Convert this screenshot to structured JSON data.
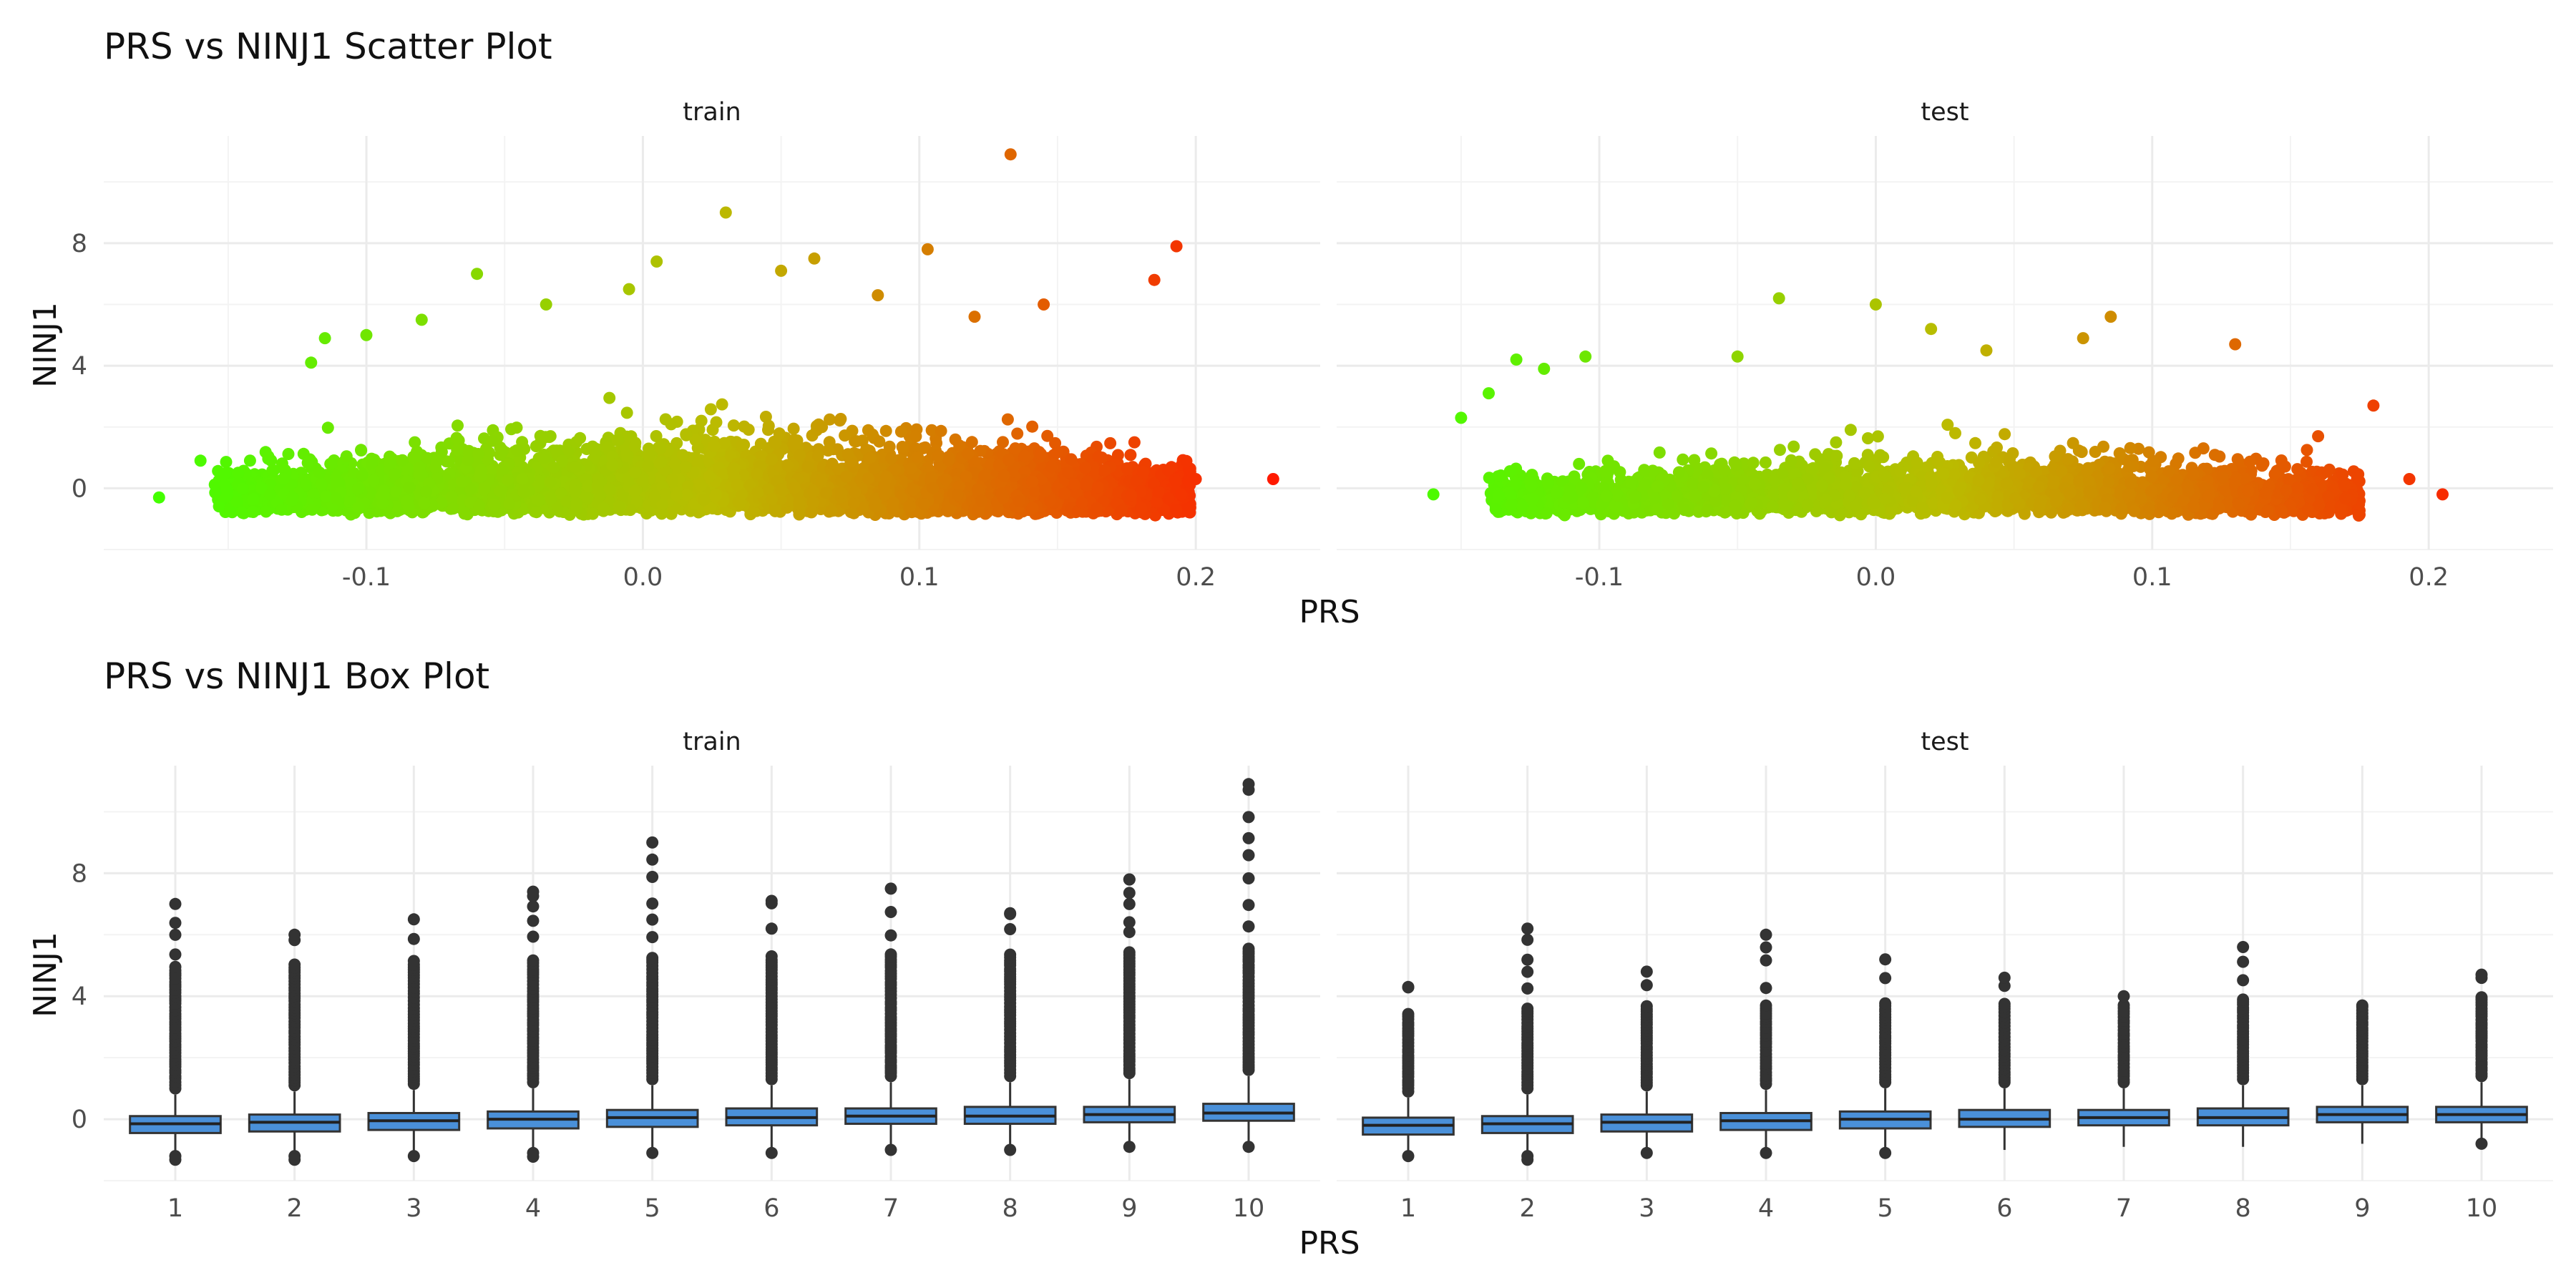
{
  "chart_data": [
    {
      "type": "scatter",
      "title": "PRS vs NINJ1 Scatter Plot",
      "xlabel": "PRS",
      "ylabel": "NINJ1",
      "xlim": [
        -0.195,
        0.245
      ],
      "ylim": [
        -2.0,
        11.5
      ],
      "x_ticks": [
        -0.1,
        0.0,
        0.1,
        0.2
      ],
      "x_tick_labels": [
        "-0.1",
        "0.0",
        "0.1",
        "0.2"
      ],
      "y_ticks": [
        0,
        4,
        8
      ],
      "y_tick_labels": [
        "0",
        "4",
        "8"
      ],
      "grid": true,
      "color_scale": {
        "low": "#44ff00",
        "mid": "#bbbb00",
        "high": "#ff1a00"
      },
      "facets": [
        {
          "label": "train",
          "x_range": [
            -0.175,
            0.228
          ],
          "bulk_y_range": [
            -1.2,
            3.5
          ],
          "highlighted_points": [
            {
              "x": -0.175,
              "y": -0.3
            },
            {
              "x": -0.16,
              "y": 0.9
            },
            {
              "x": -0.12,
              "y": 4.1
            },
            {
              "x": -0.115,
              "y": 4.9
            },
            {
              "x": -0.1,
              "y": 5.0
            },
            {
              "x": -0.08,
              "y": 5.5
            },
            {
              "x": -0.06,
              "y": 7.0
            },
            {
              "x": -0.035,
              "y": 6.0
            },
            {
              "x": -0.005,
              "y": 6.5
            },
            {
              "x": 0.005,
              "y": 7.4
            },
            {
              "x": 0.03,
              "y": 9.0
            },
            {
              "x": 0.05,
              "y": 7.1
            },
            {
              "x": 0.062,
              "y": 7.5
            },
            {
              "x": 0.085,
              "y": 6.3
            },
            {
              "x": 0.103,
              "y": 7.8
            },
            {
              "x": 0.133,
              "y": 10.9
            },
            {
              "x": 0.12,
              "y": 5.6
            },
            {
              "x": 0.145,
              "y": 6.0
            },
            {
              "x": 0.185,
              "y": 6.8
            },
            {
              "x": 0.193,
              "y": 7.9
            },
            {
              "x": 0.19,
              "y": 0.6
            },
            {
              "x": 0.2,
              "y": 0.3
            },
            {
              "x": 0.228,
              "y": 0.3
            }
          ]
        },
        {
          "label": "test",
          "x_range": [
            -0.16,
            0.205
          ],
          "bulk_y_range": [
            -1.2,
            2.5
          ],
          "highlighted_points": [
            {
              "x": -0.16,
              "y": -0.2
            },
            {
              "x": -0.15,
              "y": 2.3
            },
            {
              "x": -0.14,
              "y": 3.1
            },
            {
              "x": -0.13,
              "y": 4.2
            },
            {
              "x": -0.12,
              "y": 3.9
            },
            {
              "x": -0.105,
              "y": 4.3
            },
            {
              "x": -0.05,
              "y": 4.3
            },
            {
              "x": -0.035,
              "y": 6.2
            },
            {
              "x": 0.0,
              "y": 6.0
            },
            {
              "x": 0.02,
              "y": 5.2
            },
            {
              "x": 0.04,
              "y": 4.5
            },
            {
              "x": 0.075,
              "y": 4.9
            },
            {
              "x": 0.085,
              "y": 5.6
            },
            {
              "x": 0.13,
              "y": 4.7
            },
            {
              "x": 0.16,
              "y": 1.7
            },
            {
              "x": 0.18,
              "y": 2.7
            },
            {
              "x": 0.193,
              "y": 0.3
            },
            {
              "x": 0.205,
              "y": -0.2
            }
          ]
        }
      ]
    },
    {
      "type": "box",
      "title": "PRS vs NINJ1 Box Plot",
      "xlabel": "PRS",
      "ylabel": "NINJ1",
      "categories": [
        "1",
        "2",
        "3",
        "4",
        "5",
        "6",
        "7",
        "8",
        "9",
        "10"
      ],
      "ylim": [
        -2.0,
        11.5
      ],
      "y_ticks": [
        0,
        4,
        8
      ],
      "y_tick_labels": [
        "0",
        "4",
        "8"
      ],
      "grid": true,
      "box_fill": "#4a90d9",
      "facets": [
        {
          "label": "train",
          "boxes": [
            {
              "category": "1",
              "q1": -0.45,
              "median": -0.15,
              "q3": 0.1,
              "whisker_low": -1.1,
              "whisker_high": 0.8,
              "outlier_max": 7.0,
              "outlier_min": -1.4
            },
            {
              "category": "2",
              "q1": -0.4,
              "median": -0.1,
              "q3": 0.15,
              "whisker_low": -1.1,
              "whisker_high": 0.9,
              "outlier_max": 6.0,
              "outlier_min": -1.4
            },
            {
              "category": "3",
              "q1": -0.35,
              "median": -0.05,
              "q3": 0.2,
              "whisker_low": -1.1,
              "whisker_high": 0.95,
              "outlier_max": 6.5,
              "outlier_min": -1.3
            },
            {
              "category": "4",
              "q1": -0.3,
              "median": 0.0,
              "q3": 0.25,
              "whisker_low": -1.0,
              "whisker_high": 1.0,
              "outlier_max": 7.4,
              "outlier_min": -1.3
            },
            {
              "category": "5",
              "q1": -0.25,
              "median": 0.05,
              "q3": 0.3,
              "whisker_low": -1.0,
              "whisker_high": 1.1,
              "outlier_max": 9.0,
              "outlier_min": -1.2
            },
            {
              "category": "6",
              "q1": -0.2,
              "median": 0.05,
              "q3": 0.35,
              "whisker_low": -1.0,
              "whisker_high": 1.1,
              "outlier_max": 7.1,
              "outlier_min": -1.1
            },
            {
              "category": "7",
              "q1": -0.15,
              "median": 0.1,
              "q3": 0.35,
              "whisker_low": -0.9,
              "whisker_high": 1.2,
              "outlier_max": 7.5,
              "outlier_min": -1.0
            },
            {
              "category": "8",
              "q1": -0.15,
              "median": 0.1,
              "q3": 0.4,
              "whisker_low": -0.9,
              "whisker_high": 1.2,
              "outlier_max": 6.7,
              "outlier_min": -1.0
            },
            {
              "category": "9",
              "q1": -0.1,
              "median": 0.15,
              "q3": 0.4,
              "whisker_low": -0.8,
              "whisker_high": 1.3,
              "outlier_max": 7.8,
              "outlier_min": -0.9
            },
            {
              "category": "10",
              "q1": -0.05,
              "median": 0.2,
              "q3": 0.5,
              "whisker_low": -0.8,
              "whisker_high": 1.4,
              "outlier_max": 10.9,
              "outlier_min": -0.9
            }
          ]
        },
        {
          "label": "test",
          "boxes": [
            {
              "category": "1",
              "q1": -0.5,
              "median": -0.2,
              "q3": 0.05,
              "whisker_low": -1.1,
              "whisker_high": 0.7,
              "outlier_max": 4.3,
              "outlier_min": -1.3
            },
            {
              "category": "2",
              "q1": -0.45,
              "median": -0.15,
              "q3": 0.1,
              "whisker_low": -1.1,
              "whisker_high": 0.8,
              "outlier_max": 6.2,
              "outlier_min": -1.4
            },
            {
              "category": "3",
              "q1": -0.4,
              "median": -0.1,
              "q3": 0.15,
              "whisker_low": -1.0,
              "whisker_high": 0.9,
              "outlier_max": 4.8,
              "outlier_min": -1.2
            },
            {
              "category": "4",
              "q1": -0.35,
              "median": -0.05,
              "q3": 0.2,
              "whisker_low": -1.0,
              "whisker_high": 0.95,
              "outlier_max": 6.0,
              "outlier_min": -1.1
            },
            {
              "category": "5",
              "q1": -0.3,
              "median": 0.0,
              "q3": 0.25,
              "whisker_low": -1.0,
              "whisker_high": 1.0,
              "outlier_max": 5.2,
              "outlier_min": -1.1
            },
            {
              "category": "6",
              "q1": -0.25,
              "median": 0.0,
              "q3": 0.3,
              "whisker_low": -1.0,
              "whisker_high": 1.0,
              "outlier_max": 4.6,
              "outlier_min": -1.0
            },
            {
              "category": "7",
              "q1": -0.2,
              "median": 0.05,
              "q3": 0.3,
              "whisker_low": -0.9,
              "whisker_high": 1.0,
              "outlier_max": 4.0,
              "outlier_min": -0.9
            },
            {
              "category": "8",
              "q1": -0.2,
              "median": 0.05,
              "q3": 0.35,
              "whisker_low": -0.9,
              "whisker_high": 1.1,
              "outlier_max": 5.6,
              "outlier_min": -0.9
            },
            {
              "category": "9",
              "q1": -0.1,
              "median": 0.15,
              "q3": 0.4,
              "whisker_low": -0.8,
              "whisker_high": 1.1,
              "outlier_max": 3.7,
              "outlier_min": -0.8
            },
            {
              "category": "10",
              "q1": -0.1,
              "median": 0.15,
              "q3": 0.4,
              "whisker_low": -0.7,
              "whisker_high": 1.2,
              "outlier_max": 4.7,
              "outlier_min": -0.9
            }
          ]
        }
      ]
    }
  ]
}
